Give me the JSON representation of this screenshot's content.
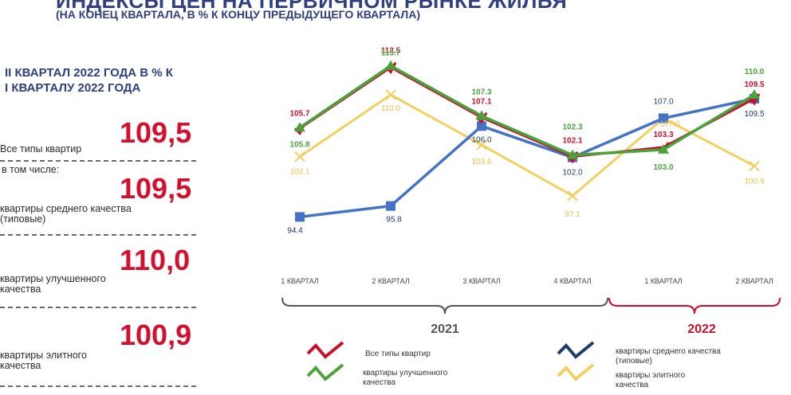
{
  "header": {
    "title": "ИНДЕКСЫ ЦЕН НА ПЕРВИЧНОМ РЫНКЕ ЖИЛЬЯ",
    "subtitle": "(НА КОНЕЦ КВАРТАЛА, В % К КОНЦУ ПРЕДЫДУЩЕГО КВАРТАЛА)"
  },
  "summary": {
    "heading_line1": "II КВАРТАЛ 2022 ГОДА В % К",
    "heading_line2": "I КВАРТАЛУ 2022 ГОДА",
    "items": [
      {
        "label": "Все типы квартир",
        "value": "109,5"
      },
      {
        "label": "в том числе:",
        "value": ""
      },
      {
        "label": "квартиры среднего качества (типовые)",
        "label_l1": "квартиры среднего качества",
        "label_l2": "(типовые)",
        "value": "109,5"
      },
      {
        "label": "квартиры улучшенного качества",
        "label_l1": "квартиры улучшенного",
        "label_l2": "качества",
        "value": "110,0"
      },
      {
        "label": "квартиры элитного качества",
        "label_l1": "квартиры элитного",
        "label_l2": "качества",
        "value": "100,9"
      }
    ]
  },
  "chart_data": {
    "type": "line",
    "categories": [
      "1 КВАРТАЛ",
      "2 КВАРТАЛ",
      "3 КВАРТАЛ",
      "4 КВАРТАЛ",
      "1 КВАРТАЛ",
      "2 КВАРТАЛ"
    ],
    "year_groups": [
      {
        "label": "2021",
        "from": 0,
        "to": 3,
        "color": "#555555"
      },
      {
        "label": "2022",
        "from": 4,
        "to": 5,
        "color": "#c8102e"
      }
    ],
    "series": [
      {
        "name": "Все типы квартир",
        "color": "#c8102e",
        "marker": "none",
        "values": [
          105.7,
          113.5,
          107.1,
          102.1,
          103.3,
          109.5
        ],
        "labels": [
          "105.7",
          "113.5",
          "107.1",
          "102.1",
          "103.3",
          "109.5"
        ]
      },
      {
        "name": "квартиры улучшенного качества",
        "color": "#4aa33a",
        "marker": "triangle",
        "values": [
          105.8,
          113.7,
          107.3,
          102.3,
          103.0,
          110.0
        ],
        "labels": [
          "105.8",
          "113.7",
          "107.3",
          "102.3",
          "103.0",
          "110.0"
        ]
      },
      {
        "name": "квартиры среднего качества (типовые)",
        "color": "#4472c4",
        "marker": "square",
        "values": [
          94.4,
          95.8,
          106.0,
          102.0,
          107.0,
          109.5
        ],
        "labels": [
          "94.4",
          "95.8",
          "106.0",
          "102.0",
          "107.0",
          "109.5"
        ]
      },
      {
        "name": "квартиры элитного качества",
        "color": "#f2d060",
        "marker": "x",
        "values": [
          102.1,
          110.0,
          103.6,
          97.1,
          107.0,
          100.9
        ],
        "labels": [
          "102.1",
          "110.0",
          "103.6",
          "97.1",
          "107.0",
          "100.9"
        ]
      }
    ],
    "legend": [
      {
        "name": "Все типы квартир",
        "color": "#c8102e"
      },
      {
        "name": "квартиры среднего качества (типовые)",
        "l1": "квартиры среднего качества",
        "l2": "(типовые)",
        "color": "#1f3a6e"
      },
      {
        "name": "квартиры улучшенного качества",
        "l1": "квартиры улучшенного",
        "l2": "качества",
        "color": "#4aa33a"
      },
      {
        "name": "квартиры элитного качества",
        "l1": "квартиры элитного",
        "l2": "качества",
        "color": "#f2d060"
      }
    ],
    "ylim": [
      92,
      116
    ],
    "grid": false
  }
}
